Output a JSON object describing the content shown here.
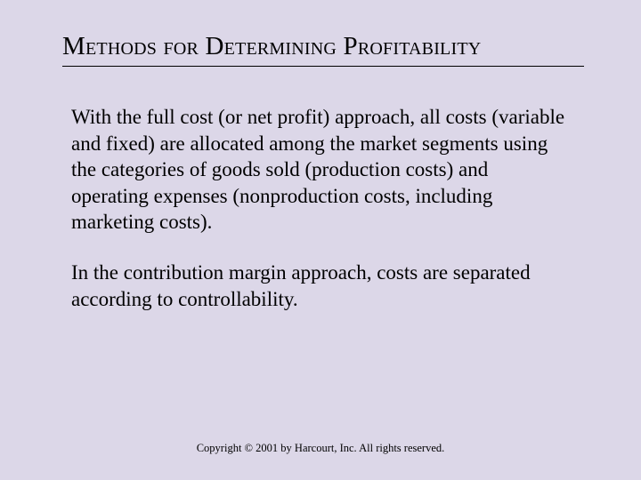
{
  "background_color": "#dcd7e8",
  "text_color": "#000000",
  "title": "Methods for Determining Profitability",
  "title_fontsize": 29,
  "title_underline_color": "#000000",
  "paragraphs": [
    "With the full cost (or net profit) approach, all costs (variable and fixed) are allocated among the market segments using the categories of goods sold (production costs) and operating expenses (nonproduction costs, including marketing costs).",
    "In the contribution margin approach, costs are separated according to controllability."
  ],
  "body_fontsize": 23,
  "footer": "Copyright © 2001 by Harcourt, Inc. All rights reserved.",
  "footer_fontsize": 12.5
}
